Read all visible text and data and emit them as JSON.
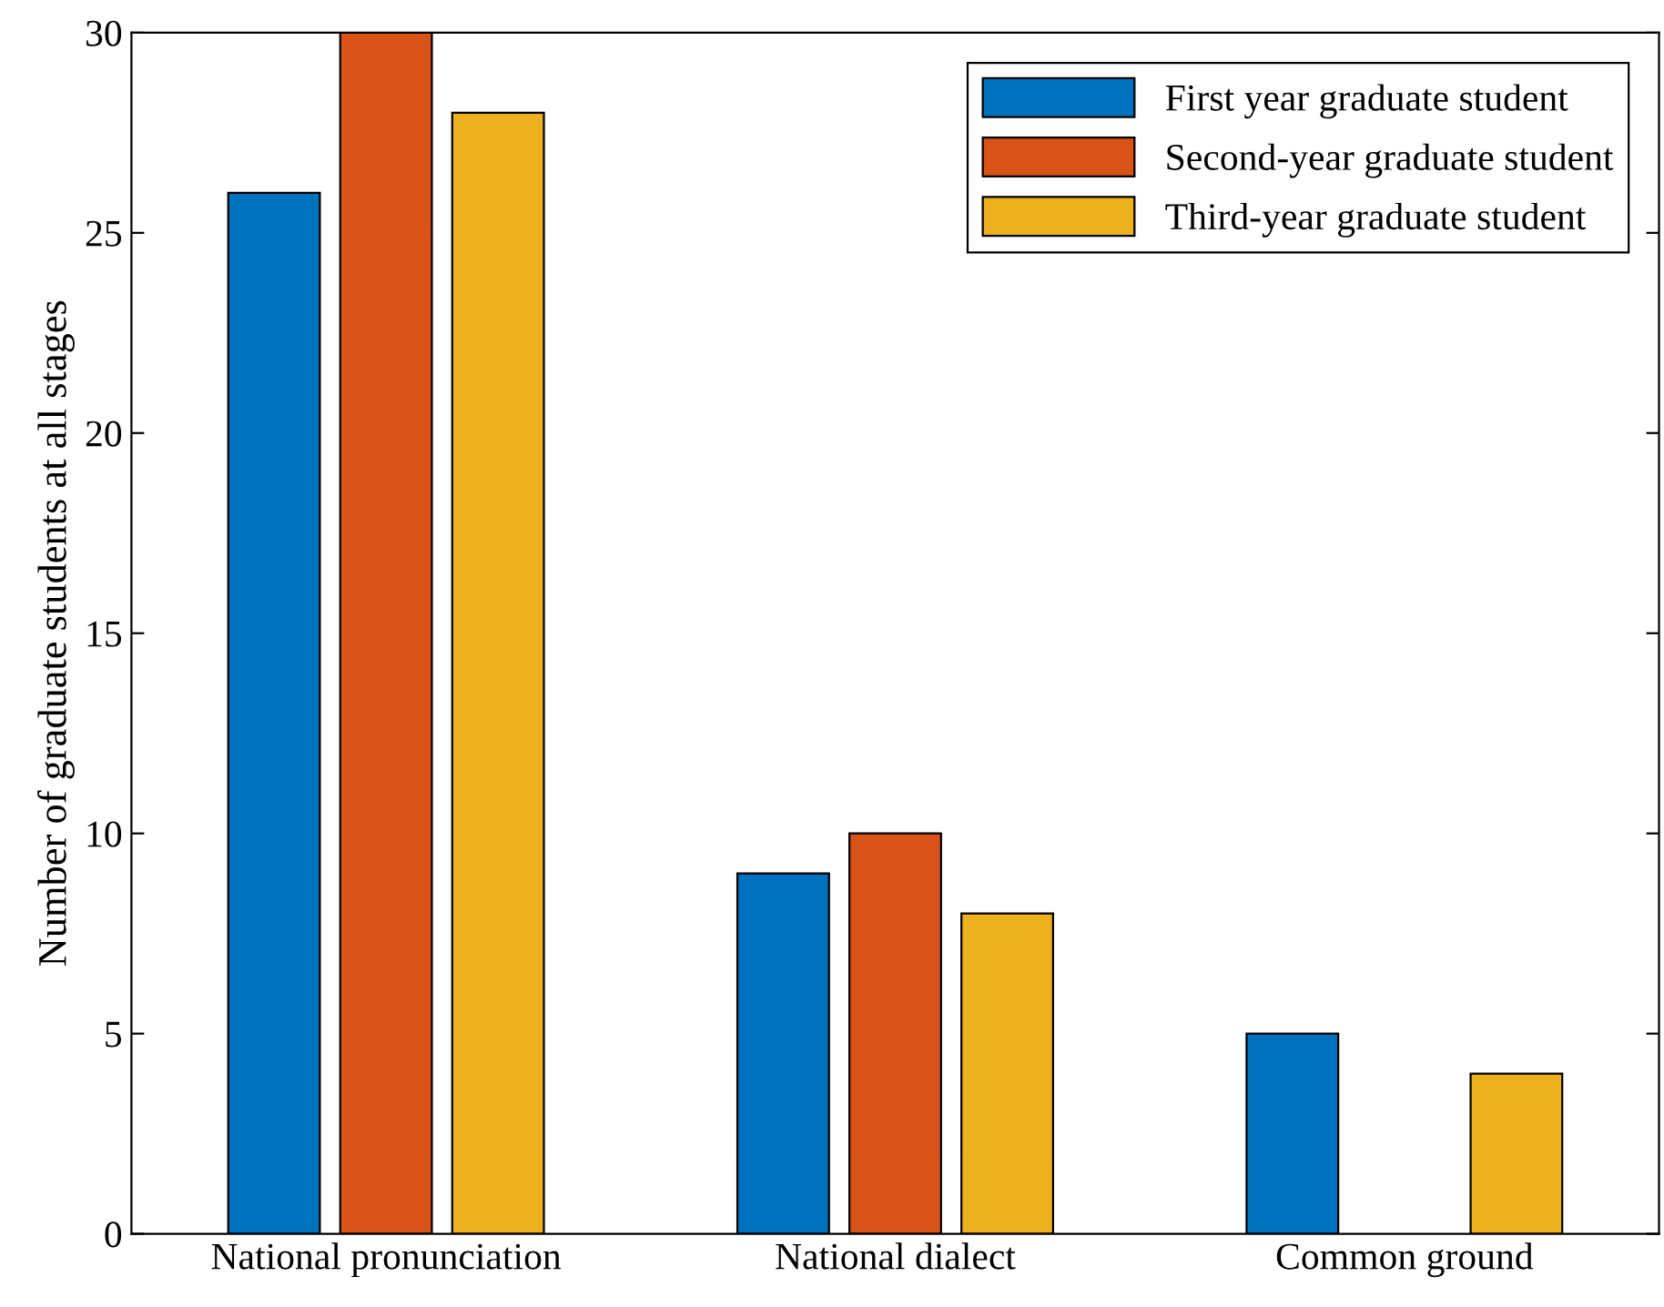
{
  "chart_data": {
    "type": "bar",
    "ylabel": "Number of graduate students at all stages",
    "categories": [
      "National pronunciation",
      "National dialect",
      "Common ground"
    ],
    "series": [
      {
        "name": "First year graduate student",
        "color": "#0072bd",
        "values": [
          26,
          9,
          5
        ]
      },
      {
        "name": "Second-year graduate student",
        "color": "#d95319",
        "values": [
          30,
          10,
          null
        ]
      },
      {
        "name": "Third-year graduate student",
        "color": "#edb120",
        "values": [
          28,
          8,
          4
        ]
      }
    ],
    "ylim": [
      0,
      30
    ],
    "yticks": [
      0,
      5,
      10,
      15,
      20,
      25,
      30
    ],
    "grid": false,
    "legend": "top right"
  }
}
